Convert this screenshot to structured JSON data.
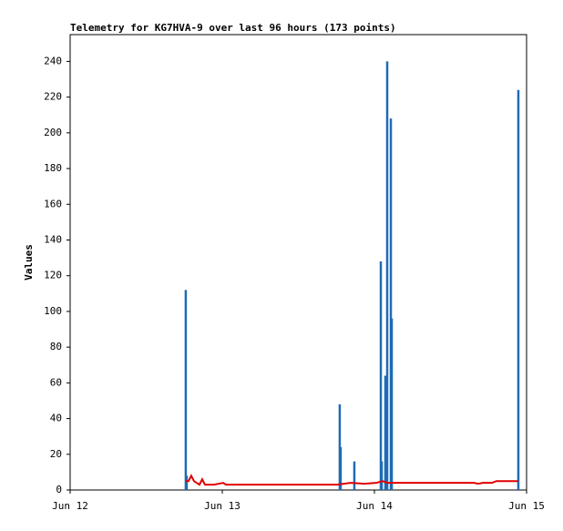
{
  "chart_data": {
    "type": "line",
    "title": "Telemetry for KG7HVA-9 over last 96 hours (173 points)",
    "y_label": "Values",
    "xlim": [
      0,
      3
    ],
    "ylim": [
      0,
      255
    ],
    "xticks": [
      {
        "value": 0,
        "label": "Jun 12"
      },
      {
        "value": 1,
        "label": "Jun 13"
      },
      {
        "value": 2,
        "label": "Jun 14"
      },
      {
        "value": 3,
        "label": "Jun 15"
      }
    ],
    "yticks": [
      0,
      20,
      40,
      60,
      80,
      100,
      120,
      140,
      160,
      180,
      200,
      220,
      240
    ],
    "series": [
      {
        "style": "bar",
        "color": "#1f6bb5",
        "x": [
          0.76,
          0.766,
          1.772,
          1.778,
          1.868,
          2.042,
          2.048,
          2.072,
          2.084,
          2.108,
          2.114,
          2.946
        ],
        "values": [
          112,
          8,
          48,
          24,
          16,
          128,
          16,
          64,
          240,
          208,
          96,
          224
        ]
      },
      {
        "style": "line",
        "color": "#e00000",
        "x": [
          0.76,
          0.778,
          0.796,
          0.814,
          0.832,
          0.85,
          0.868,
          0.886,
          0.946,
          1.006,
          1.024,
          1.335,
          1.754,
          1.844,
          1.934,
          2.012,
          2.054,
          2.084,
          2.114,
          2.353,
          2.653,
          2.683,
          2.713,
          2.772,
          2.802,
          2.946
        ],
        "values": [
          5,
          5,
          8,
          5,
          4,
          3,
          6,
          3,
          3,
          4,
          3,
          3,
          3,
          4,
          3.5,
          4,
          5,
          4,
          4,
          4,
          4,
          3.5,
          4,
          4,
          5,
          5
        ]
      }
    ]
  }
}
